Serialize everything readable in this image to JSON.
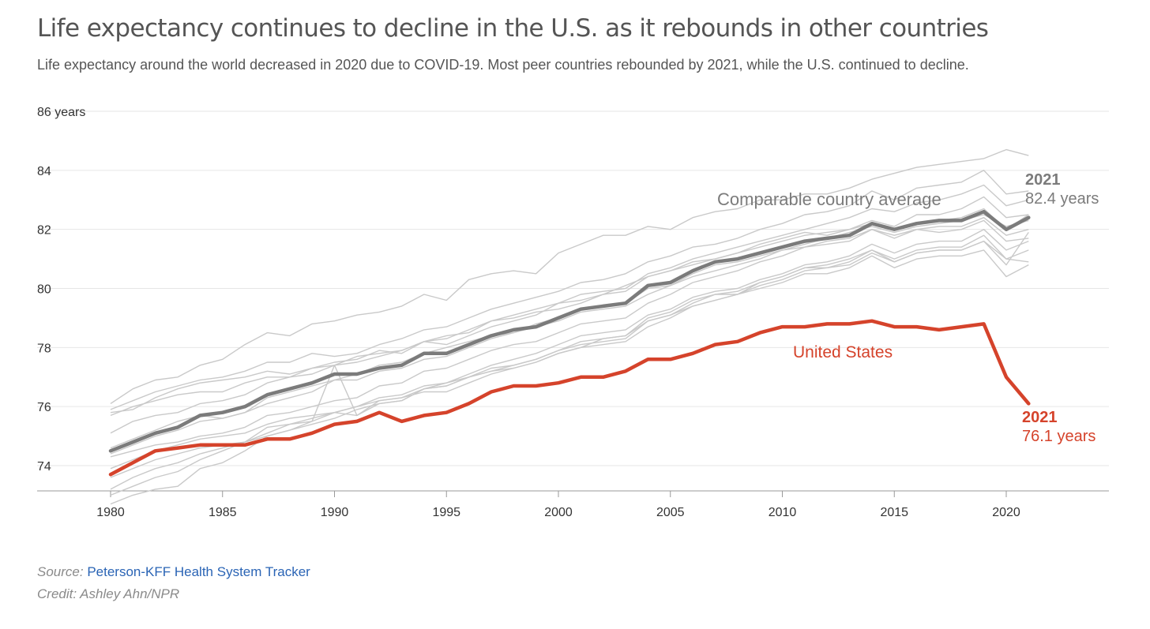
{
  "header": {
    "title": "Life expectancy continues to decline in the U.S. as it rebounds in other countries",
    "subtitle": "Life expectancy around the world decreased in 2020 due to COVID-19. Most peer countries rebounded by 2021, while the U.S. continued to decline."
  },
  "footer": {
    "source_label": "Source:",
    "source_link": "Peterson-KFF Health System Tracker",
    "credit": "Credit: Ashley Ahn/NPR"
  },
  "colors": {
    "us": "#d5432b",
    "average": "#7b7b7b",
    "peers": "#c9c9c9",
    "grid": "#e6e6e6",
    "axis_text": "#333333"
  },
  "chart_data": {
    "type": "line",
    "xlim": [
      1980,
      2024
    ],
    "ylim": [
      72.6,
      86
    ],
    "y_ticks": [
      74,
      76,
      78,
      80,
      82,
      84,
      86
    ],
    "y_tick_labels": [
      "74",
      "76",
      "78",
      "80",
      "82",
      "84",
      "86 years"
    ],
    "x_ticks": [
      1980,
      1985,
      1990,
      1995,
      2000,
      2005,
      2010,
      2015,
      2020
    ],
    "grid": "horizontal",
    "x": [
      1980,
      1981,
      1982,
      1983,
      1984,
      1985,
      1986,
      1987,
      1988,
      1989,
      1990,
      1991,
      1992,
      1993,
      1994,
      1995,
      1996,
      1997,
      1998,
      1999,
      2000,
      2001,
      2002,
      2003,
      2004,
      2005,
      2006,
      2007,
      2008,
      2009,
      2010,
      2011,
      2012,
      2013,
      2014,
      2015,
      2016,
      2017,
      2018,
      2019,
      2020,
      2021
    ],
    "series": [
      {
        "name": "United States",
        "values": [
          73.7,
          74.1,
          74.5,
          74.6,
          74.7,
          74.7,
          74.7,
          74.9,
          74.9,
          75.1,
          75.4,
          75.5,
          75.8,
          75.5,
          75.7,
          75.8,
          76.1,
          76.5,
          76.7,
          76.7,
          76.8,
          77.0,
          77.0,
          77.2,
          77.6,
          77.6,
          77.8,
          78.1,
          78.2,
          78.5,
          78.7,
          78.7,
          78.8,
          78.8,
          78.9,
          78.7,
          78.7,
          78.6,
          78.7,
          78.8,
          77.0,
          76.1
        ]
      },
      {
        "name": "Comparable country average",
        "values": [
          74.5,
          74.8,
          75.1,
          75.3,
          75.7,
          75.8,
          76.0,
          76.4,
          76.6,
          76.8,
          77.1,
          77.1,
          77.3,
          77.4,
          77.8,
          77.8,
          78.1,
          78.4,
          78.6,
          78.7,
          79.0,
          79.3,
          79.4,
          79.5,
          80.1,
          80.2,
          80.6,
          80.9,
          81.0,
          81.2,
          81.4,
          81.6,
          81.7,
          81.8,
          82.2,
          82.0,
          82.2,
          82.3,
          82.3,
          82.6,
          82.0,
          82.4
        ]
      }
    ],
    "peer_countries": [
      [
        76.1,
        76.6,
        76.9,
        77.0,
        77.4,
        77.6,
        78.1,
        78.5,
        78.4,
        78.8,
        78.9,
        79.1,
        79.2,
        79.4,
        79.8,
        79.6,
        80.3,
        80.5,
        80.6,
        80.5,
        81.2,
        81.5,
        81.8,
        81.8,
        82.1,
        82.0,
        82.4,
        82.6,
        82.7,
        83.0,
        83.0,
        83.2,
        83.2,
        83.4,
        83.7,
        83.9,
        84.1,
        84.2,
        84.3,
        84.4,
        84.7,
        84.5
      ],
      [
        75.9,
        76.2,
        76.5,
        76.7,
        76.9,
        77.0,
        77.2,
        77.5,
        77.5,
        77.8,
        77.7,
        77.8,
        78.1,
        78.3,
        78.6,
        78.7,
        79.0,
        79.3,
        79.5,
        79.7,
        79.9,
        80.2,
        80.3,
        80.5,
        80.9,
        81.1,
        81.4,
        81.5,
        81.7,
        82.0,
        82.2,
        82.5,
        82.6,
        82.8,
        83.3,
        83.0,
        83.4,
        83.5,
        83.6,
        84.0,
        83.2,
        83.3
      ],
      [
        75.8,
        75.9,
        76.3,
        76.6,
        76.8,
        76.9,
        77.0,
        77.2,
        77.1,
        77.3,
        77.4,
        77.7,
        77.8,
        77.9,
        78.2,
        78.1,
        78.4,
        78.7,
        78.9,
        79.1,
        79.5,
        79.8,
        79.9,
        80.0,
        80.5,
        80.7,
        81.0,
        81.2,
        81.4,
        81.6,
        81.8,
        82.0,
        82.2,
        82.4,
        82.7,
        82.6,
        82.9,
        83.0,
        83.2,
        83.5,
        82.8,
        83.0
      ],
      [
        75.7,
        76.0,
        76.2,
        76.4,
        76.5,
        76.5,
        76.8,
        77.0,
        77.0,
        77.3,
        77.5,
        77.6,
        77.9,
        77.8,
        78.2,
        78.3,
        78.6,
        78.9,
        79.0,
        79.2,
        79.3,
        79.5,
        79.8,
        79.9,
        80.4,
        80.6,
        80.9,
        81.0,
        81.2,
        81.5,
        81.7,
        81.9,
        81.8,
        82.0,
        82.3,
        82.1,
        82.5,
        82.5,
        82.7,
        83.1,
        82.4,
        82.5
      ],
      [
        75.1,
        75.5,
        75.7,
        75.8,
        76.1,
        76.2,
        76.4,
        76.8,
        77.0,
        77.1,
        77.4,
        77.5,
        77.7,
        77.9,
        78.2,
        78.4,
        78.5,
        78.9,
        79.1,
        79.3,
        79.5,
        79.6,
        79.8,
        80.1,
        80.4,
        80.6,
        80.8,
        81.0,
        81.2,
        81.4,
        81.6,
        81.8,
        81.9,
        82.0,
        82.2,
        82.0,
        82.2,
        82.3,
        82.4,
        82.7,
        82.0,
        82.5
      ],
      [
        74.6,
        74.9,
        75.2,
        75.5,
        75.7,
        75.6,
        75.8,
        76.3,
        76.5,
        76.7,
        76.9,
        77.1,
        77.4,
        77.5,
        77.8,
        78.0,
        78.2,
        78.4,
        78.5,
        78.7,
        78.9,
        79.2,
        79.3,
        79.4,
        79.8,
        80.1,
        80.4,
        80.6,
        80.8,
        81.0,
        81.3,
        81.5,
        81.7,
        81.9,
        82.1,
        81.9,
        82.1,
        82.2,
        82.3,
        82.5,
        82.1,
        82.3
      ],
      [
        74.4,
        74.7,
        75.0,
        75.2,
        75.5,
        75.6,
        75.8,
        76.1,
        76.3,
        76.5,
        76.9,
        76.9,
        77.2,
        77.3,
        77.6,
        77.7,
        78.0,
        78.3,
        78.5,
        78.8,
        79.0,
        79.3,
        79.4,
        79.5,
        80.0,
        80.1,
        80.5,
        80.8,
        80.9,
        81.1,
        81.3,
        81.4,
        81.6,
        81.7,
        82.0,
        81.8,
        82.0,
        82.1,
        82.1,
        82.4,
        81.8,
        82.0
      ],
      [
        74.3,
        74.5,
        74.7,
        74.8,
        75.0,
        75.1,
        75.3,
        75.7,
        75.8,
        76.0,
        76.2,
        76.3,
        76.7,
        76.8,
        77.2,
        77.3,
        77.6,
        77.9,
        78.1,
        78.2,
        78.5,
        78.8,
        78.9,
        79.0,
        79.5,
        79.8,
        80.2,
        80.4,
        80.6,
        80.9,
        81.1,
        81.4,
        81.5,
        81.6,
        82.0,
        81.7,
        82.0,
        81.9,
        82.0,
        82.3,
        81.6,
        81.7
      ],
      [
        73.9,
        74.2,
        74.5,
        74.7,
        74.9,
        75.0,
        75.1,
        75.4,
        75.6,
        75.7,
        75.8,
        76.0,
        76.3,
        76.4,
        76.7,
        76.8,
        77.1,
        77.4,
        77.6,
        77.8,
        78.1,
        78.4,
        78.5,
        78.6,
        79.1,
        79.3,
        79.7,
        79.9,
        80.0,
        80.3,
        80.5,
        80.8,
        80.9,
        81.1,
        81.5,
        81.2,
        81.5,
        81.6,
        81.6,
        82.0,
        81.3,
        81.6
      ],
      [
        73.6,
        73.9,
        74.2,
        74.4,
        74.6,
        74.7,
        74.8,
        75.0,
        75.2,
        75.4,
        75.6,
        75.9,
        76.1,
        76.2,
        76.6,
        76.7,
        77.0,
        77.2,
        77.4,
        77.6,
        77.9,
        78.1,
        78.2,
        78.3,
        78.9,
        79.1,
        79.5,
        79.8,
        79.8,
        80.2,
        80.4,
        80.7,
        80.8,
        81.0,
        81.3,
        81.0,
        81.3,
        81.4,
        81.4,
        81.8,
        81.0,
        81.3
      ],
      [
        73.2,
        73.6,
        73.9,
        74.1,
        74.4,
        74.6,
        74.8,
        75.3,
        75.4,
        75.6,
        75.8,
        75.7,
        76.1,
        76.2,
        76.6,
        76.8,
        77.0,
        77.3,
        77.4,
        77.6,
        77.9,
        78.2,
        78.3,
        78.4,
        79.0,
        79.2,
        79.6,
        79.8,
        79.9,
        80.2,
        80.4,
        80.7,
        80.7,
        80.9,
        81.3,
        80.9,
        81.2,
        81.3,
        81.3,
        81.6,
        80.8,
        81.9
      ],
      [
        73.0,
        73.3,
        73.6,
        73.8,
        74.2,
        74.5,
        74.8,
        75.1,
        75.4,
        75.5,
        77.4,
        75.7,
        76.2,
        76.3,
        76.5,
        76.5,
        76.8,
        77.1,
        77.3,
        77.5,
        77.8,
        78.0,
        78.1,
        78.2,
        78.7,
        79.0,
        79.4,
        79.6,
        79.8,
        80.0,
        80.2,
        80.5,
        80.5,
        80.7,
        81.1,
        80.7,
        81.0,
        81.1,
        81.1,
        81.3,
        80.4,
        80.8
      ],
      [
        72.7,
        73.0,
        73.2,
        73.3,
        73.9,
        74.1,
        74.5,
        75.0,
        75.2,
        75.5,
        75.8,
        76.0,
        76.2,
        76.3,
        76.6,
        76.7,
        77.0,
        77.2,
        77.3,
        77.5,
        77.8,
        78.0,
        78.3,
        78.4,
        78.9,
        79.1,
        79.4,
        79.6,
        79.8,
        80.1,
        80.3,
        80.6,
        80.7,
        80.8,
        81.2,
        80.9,
        81.2,
        81.3,
        81.3,
        81.6,
        81.0,
        80.9
      ]
    ],
    "annotations": [
      {
        "series": "average",
        "year": "2021",
        "value_text": "82.4 years",
        "label": "Comparable country average"
      },
      {
        "series": "us",
        "year": "2021",
        "value_text": "76.1 years",
        "label": "United States"
      }
    ]
  }
}
